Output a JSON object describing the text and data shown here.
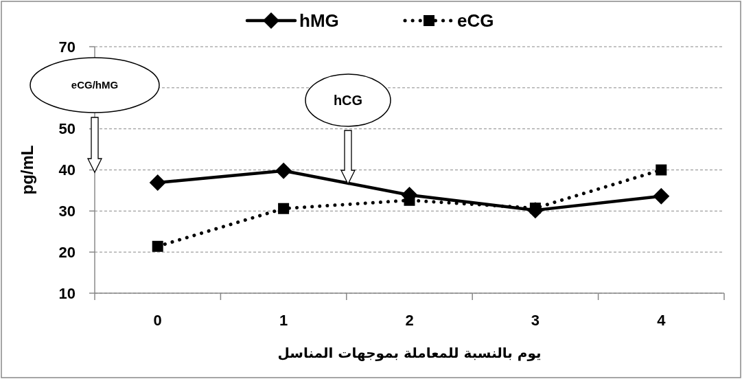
{
  "chart_data": {
    "type": "line",
    "xlabel": "يوم بالنسبة للمعاملة بموجهات المناسل",
    "ylabel": "pg/mL",
    "categories": [
      "0",
      "1",
      "2",
      "3",
      "4"
    ],
    "series": [
      {
        "name": "hMG",
        "color": "#000000",
        "marker": "diamond",
        "line_style": "solid",
        "values": [
          36.9,
          39.8,
          33.9,
          30.2,
          33.6
        ]
      },
      {
        "name": "eCG",
        "color": "#000000",
        "marker": "square",
        "line_style": "dotted",
        "values": [
          21.4,
          30.6,
          32.6,
          30.7,
          40.0
        ]
      }
    ],
    "ylim": [
      10,
      70
    ],
    "yticks": [
      10,
      20,
      30,
      40,
      50,
      {
        "value": 60,
        "label": null
      },
      70
    ],
    "grid": "y",
    "legend": "top",
    "annotations": [
      "eCG/hMG",
      "hCG"
    ]
  }
}
